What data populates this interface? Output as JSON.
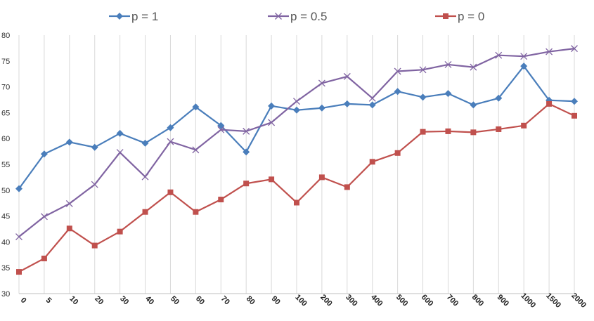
{
  "chart_data": {
    "type": "line",
    "title": "",
    "xlabel": "",
    "ylabel": "",
    "categories": [
      "0",
      "5",
      "10",
      "20",
      "30",
      "40",
      "50",
      "60",
      "70",
      "80",
      "90",
      "100",
      "200",
      "300",
      "400",
      "500",
      "600",
      "700",
      "800",
      "900",
      "1000",
      "1500",
      "2000"
    ],
    "ylim": [
      30,
      80
    ],
    "yticks": [
      30,
      35,
      40,
      45,
      50,
      55,
      60,
      65,
      70,
      75,
      80
    ],
    "grid": "vertical",
    "legend": "top",
    "series": [
      {
        "name": "p = 1",
        "color": "#4a7ebb",
        "marker": "diamond",
        "values": [
          50.3,
          57.0,
          59.3,
          58.3,
          61.0,
          59.1,
          62.1,
          66.1,
          62.5,
          57.4,
          66.3,
          65.5,
          65.9,
          66.7,
          66.5,
          69.1,
          68.0,
          68.7,
          66.5,
          67.8,
          74.0,
          67.4,
          67.2
        ]
      },
      {
        "name": "p = 0.5",
        "color": "#8064a2",
        "marker": "x",
        "values": [
          41.0,
          44.9,
          47.4,
          51.1,
          57.3,
          52.6,
          59.4,
          57.8,
          61.7,
          61.4,
          63.1,
          67.2,
          70.7,
          72.0,
          67.8,
          73.0,
          73.3,
          74.3,
          73.8,
          76.1,
          75.9,
          76.8,
          77.4
        ]
      },
      {
        "name": "p = 0",
        "color": "#c0504d",
        "marker": "square",
        "values": [
          34.2,
          36.8,
          42.6,
          39.3,
          42.0,
          45.8,
          49.6,
          45.8,
          48.2,
          51.3,
          52.1,
          47.6,
          52.5,
          50.6,
          55.5,
          57.2,
          61.3,
          61.4,
          61.2,
          61.8,
          62.5,
          66.7,
          64.4
        ]
      }
    ]
  }
}
